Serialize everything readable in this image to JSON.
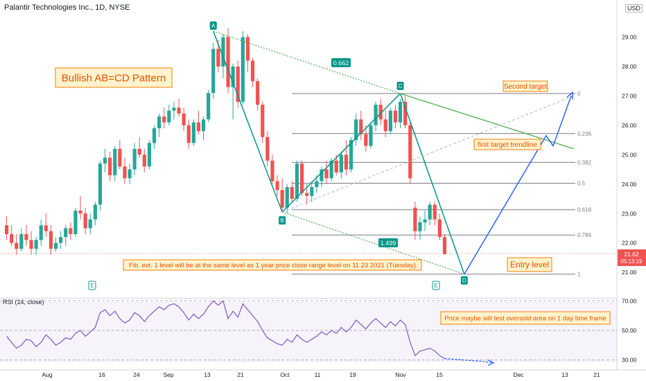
{
  "header": {
    "title": "Palantir Technologies Inc., 1D, NYSE",
    "currency": "USD"
  },
  "colors": {
    "up": "#26a69a",
    "down": "#ef5350",
    "green_line": "#4caf50",
    "teal": "#009688",
    "blue": "#2962ff",
    "fib": "#787b86",
    "rsi": "#7e57c2",
    "note_bg": "#fff3cd",
    "note_border": "#f57c00",
    "note_text": "#e65100"
  },
  "chart_data": [
    {
      "type": "candlestick",
      "title": "Palantir Technologies Inc., 1D, NYSE",
      "ylim": [
        20.5,
        30
      ],
      "y_ticks": [
        "29.00",
        "28.00",
        "27.00",
        "26.00",
        "25.00",
        "24.00",
        "23.00",
        "22.00",
        "21.00"
      ],
      "y_tick_values": [
        29,
        28,
        27,
        26,
        25,
        24,
        23,
        22,
        21
      ],
      "x_ticks": [
        "Aug",
        "16",
        "24",
        "Sep",
        "13",
        "21",
        "Oct",
        "11",
        "19",
        "Nov",
        "15",
        "Dec",
        "13",
        "21"
      ],
      "price_label": "21.62",
      "countdown_label": "05:13:19",
      "last_price": 21.62,
      "ohlc": [
        [
          22.6,
          22.9,
          22.1,
          22.3
        ],
        [
          22.3,
          22.6,
          21.9,
          22.0
        ],
        [
          22.0,
          22.3,
          21.6,
          21.8
        ],
        [
          21.8,
          22.5,
          21.7,
          22.3
        ],
        [
          22.3,
          22.6,
          21.9,
          22.1
        ],
        [
          22.1,
          22.4,
          21.6,
          21.8
        ],
        [
          21.8,
          22.2,
          21.6,
          22.1
        ],
        [
          22.1,
          22.8,
          21.9,
          22.6
        ],
        [
          22.6,
          23.0,
          22.2,
          22.4
        ],
        [
          22.4,
          22.6,
          21.6,
          21.8
        ],
        [
          21.8,
          22.2,
          21.7,
          22.0
        ],
        [
          22.0,
          22.4,
          21.8,
          22.2
        ],
        [
          22.2,
          22.6,
          21.9,
          22.5
        ],
        [
          22.5,
          22.7,
          22.1,
          22.3
        ],
        [
          22.3,
          23.2,
          22.2,
          23.1
        ],
        [
          23.1,
          23.6,
          22.8,
          23.0
        ],
        [
          23.0,
          23.2,
          22.3,
          22.5
        ],
        [
          22.5,
          23.0,
          22.3,
          22.8
        ],
        [
          22.8,
          23.4,
          22.6,
          23.3
        ],
        [
          23.3,
          24.8,
          23.1,
          24.7
        ],
        [
          24.7,
          25.2,
          24.4,
          24.9
        ],
        [
          24.9,
          25.1,
          24.1,
          24.3
        ],
        [
          24.3,
          25.3,
          24.1,
          25.2
        ],
        [
          25.2,
          25.5,
          24.5,
          24.6
        ],
        [
          24.6,
          24.9,
          24.0,
          24.2
        ],
        [
          24.2,
          24.7,
          24.0,
          24.5
        ],
        [
          24.5,
          25.4,
          24.3,
          25.2
        ],
        [
          25.2,
          25.6,
          24.9,
          25.0
        ],
        [
          25.0,
          25.2,
          24.4,
          24.6
        ],
        [
          24.6,
          25.5,
          24.5,
          25.4
        ],
        [
          25.4,
          26.0,
          25.2,
          25.9
        ],
        [
          25.9,
          26.4,
          25.6,
          26.3
        ],
        [
          26.3,
          26.6,
          25.9,
          26.1
        ],
        [
          26.1,
          26.7,
          26.0,
          26.5
        ],
        [
          26.5,
          26.8,
          26.2,
          26.6
        ],
        [
          26.6,
          26.9,
          26.3,
          26.4
        ],
        [
          26.4,
          26.6,
          25.8,
          26.0
        ],
        [
          26.0,
          26.2,
          25.2,
          25.4
        ],
        [
          25.4,
          26.2,
          25.3,
          26.1
        ],
        [
          26.1,
          26.5,
          25.7,
          25.8
        ],
        [
          25.8,
          26.3,
          25.5,
          26.2
        ],
        [
          26.2,
          27.2,
          26.1,
          27.1
        ],
        [
          27.1,
          28.8,
          26.9,
          28.6
        ],
        [
          28.6,
          28.9,
          27.8,
          28.0
        ],
        [
          28.0,
          29.1,
          27.6,
          29.0
        ],
        [
          29.0,
          29.3,
          27.1,
          27.3
        ],
        [
          27.3,
          28.1,
          26.2,
          28.0
        ],
        [
          28.0,
          28.2,
          26.6,
          26.8
        ],
        [
          26.8,
          29.2,
          26.7,
          29.0
        ],
        [
          29.0,
          29.1,
          27.8,
          28.2
        ],
        [
          28.2,
          28.3,
          27.3,
          27.5
        ],
        [
          27.5,
          27.6,
          26.5,
          26.7
        ],
        [
          26.7,
          26.8,
          25.4,
          25.6
        ],
        [
          25.6,
          25.8,
          24.6,
          24.8
        ],
        [
          24.8,
          25.0,
          24.0,
          24.1
        ],
        [
          24.1,
          24.3,
          23.6,
          23.8
        ],
        [
          23.8,
          24.2,
          23.1,
          23.2
        ],
        [
          23.2,
          24.0,
          23.0,
          23.9
        ],
        [
          23.9,
          24.1,
          23.4,
          23.5
        ],
        [
          23.5,
          24.8,
          23.4,
          24.7
        ],
        [
          24.7,
          24.8,
          23.6,
          23.7
        ],
        [
          23.7,
          24.0,
          23.3,
          23.6
        ],
        [
          23.6,
          24.1,
          23.4,
          23.9
        ],
        [
          23.9,
          24.3,
          23.7,
          24.1
        ],
        [
          24.1,
          24.6,
          23.9,
          24.5
        ],
        [
          24.5,
          24.8,
          24.0,
          24.2
        ],
        [
          24.2,
          24.9,
          24.1,
          24.8
        ],
        [
          24.8,
          25.0,
          24.3,
          24.4
        ],
        [
          24.4,
          25.1,
          24.2,
          25.0
        ],
        [
          25.0,
          25.5,
          24.3,
          24.5
        ],
        [
          24.5,
          25.6,
          24.4,
          25.5
        ],
        [
          25.5,
          26.4,
          25.3,
          26.2
        ],
        [
          26.2,
          26.5,
          25.5,
          25.7
        ],
        [
          25.7,
          26.0,
          25.1,
          25.3
        ],
        [
          25.3,
          26.1,
          25.2,
          26.0
        ],
        [
          26.0,
          26.8,
          25.8,
          26.7
        ],
        [
          26.7,
          26.9,
          26.0,
          26.2
        ],
        [
          26.2,
          26.5,
          25.6,
          25.8
        ],
        [
          25.8,
          26.6,
          25.7,
          26.5
        ],
        [
          26.5,
          26.7,
          25.9,
          26.1
        ],
        [
          26.1,
          26.9,
          25.9,
          26.8
        ],
        [
          26.8,
          27.0,
          25.9,
          26.0
        ],
        [
          26.0,
          26.1,
          24.0,
          24.2
        ],
        [
          23.2,
          23.4,
          22.1,
          22.4
        ],
        [
          22.4,
          22.9,
          22.1,
          22.7
        ],
        [
          22.7,
          23.1,
          22.4,
          22.8
        ],
        [
          22.8,
          23.4,
          22.6,
          23.3
        ],
        [
          23.3,
          23.4,
          22.6,
          22.8
        ],
        [
          22.8,
          23.0,
          22.1,
          22.2
        ],
        [
          22.2,
          22.3,
          21.6,
          21.62
        ]
      ]
    },
    {
      "type": "line",
      "title": "RSI (14, close)",
      "ylim": [
        28,
        72
      ],
      "y_ticks": [
        "70.00",
        "50.00",
        "30.00"
      ],
      "y_tick_values": [
        70,
        50,
        30
      ],
      "values": [
        46,
        42,
        38,
        40,
        44,
        43,
        39,
        42,
        47,
        44,
        40,
        42,
        45,
        44,
        48,
        50,
        46,
        49,
        52,
        62,
        64,
        60,
        63,
        58,
        55,
        57,
        62,
        60,
        56,
        60,
        63,
        66,
        64,
        67,
        68,
        66,
        62,
        57,
        61,
        58,
        61,
        66,
        70,
        67,
        70,
        58,
        63,
        59,
        68,
        64,
        60,
        56,
        50,
        45,
        43,
        41,
        40,
        44,
        42,
        47,
        44,
        42,
        44,
        46,
        49,
        47,
        50,
        48,
        52,
        49,
        52,
        57,
        54,
        51,
        55,
        58,
        55,
        52,
        56,
        53,
        57,
        54,
        42,
        33,
        36,
        37,
        38,
        36,
        33,
        31
      ]
    }
  ],
  "annotations": {
    "pattern_title": "Bullish AB=CD Pattern",
    "second_target": "Second target",
    "first_target": "first target trendline",
    "fib_note": "Fib. ext. 1 level will be at the same level as 1 year price close range level on 11 23 2021 (Tuesday)",
    "entry": "Entry level",
    "rsi_note": "Price maybe will test oversold area on 1 day time frame",
    "ratio_ab": "0.662",
    "ratio_bd": "1.499",
    "point_a": "A",
    "point_b": "B",
    "point_c": "C",
    "point_d": "D",
    "earnings_label": "E"
  },
  "fib_levels": {
    "labels": [
      "0",
      "0.236",
      "0.382",
      "0.5",
      "0.618",
      "0.786",
      "1"
    ],
    "prices": [
      27.08,
      25.72,
      24.74,
      24.03,
      23.13,
      22.27,
      20.94
    ]
  },
  "pattern_points": {
    "A": {
      "bar": 42,
      "price": 29.2
    },
    "B": {
      "bar": 56,
      "price": 23.05
    },
    "C": {
      "bar": 80,
      "price": 27.08
    },
    "D": {
      "bar": 93,
      "price": 20.94
    }
  },
  "projection": {
    "start_price": 20.94,
    "first_target_price": 25.65,
    "pullback_price": 25.3,
    "second_target_price": 27.0
  },
  "rsi_indicator": {
    "label": "RSI (14, close)"
  }
}
